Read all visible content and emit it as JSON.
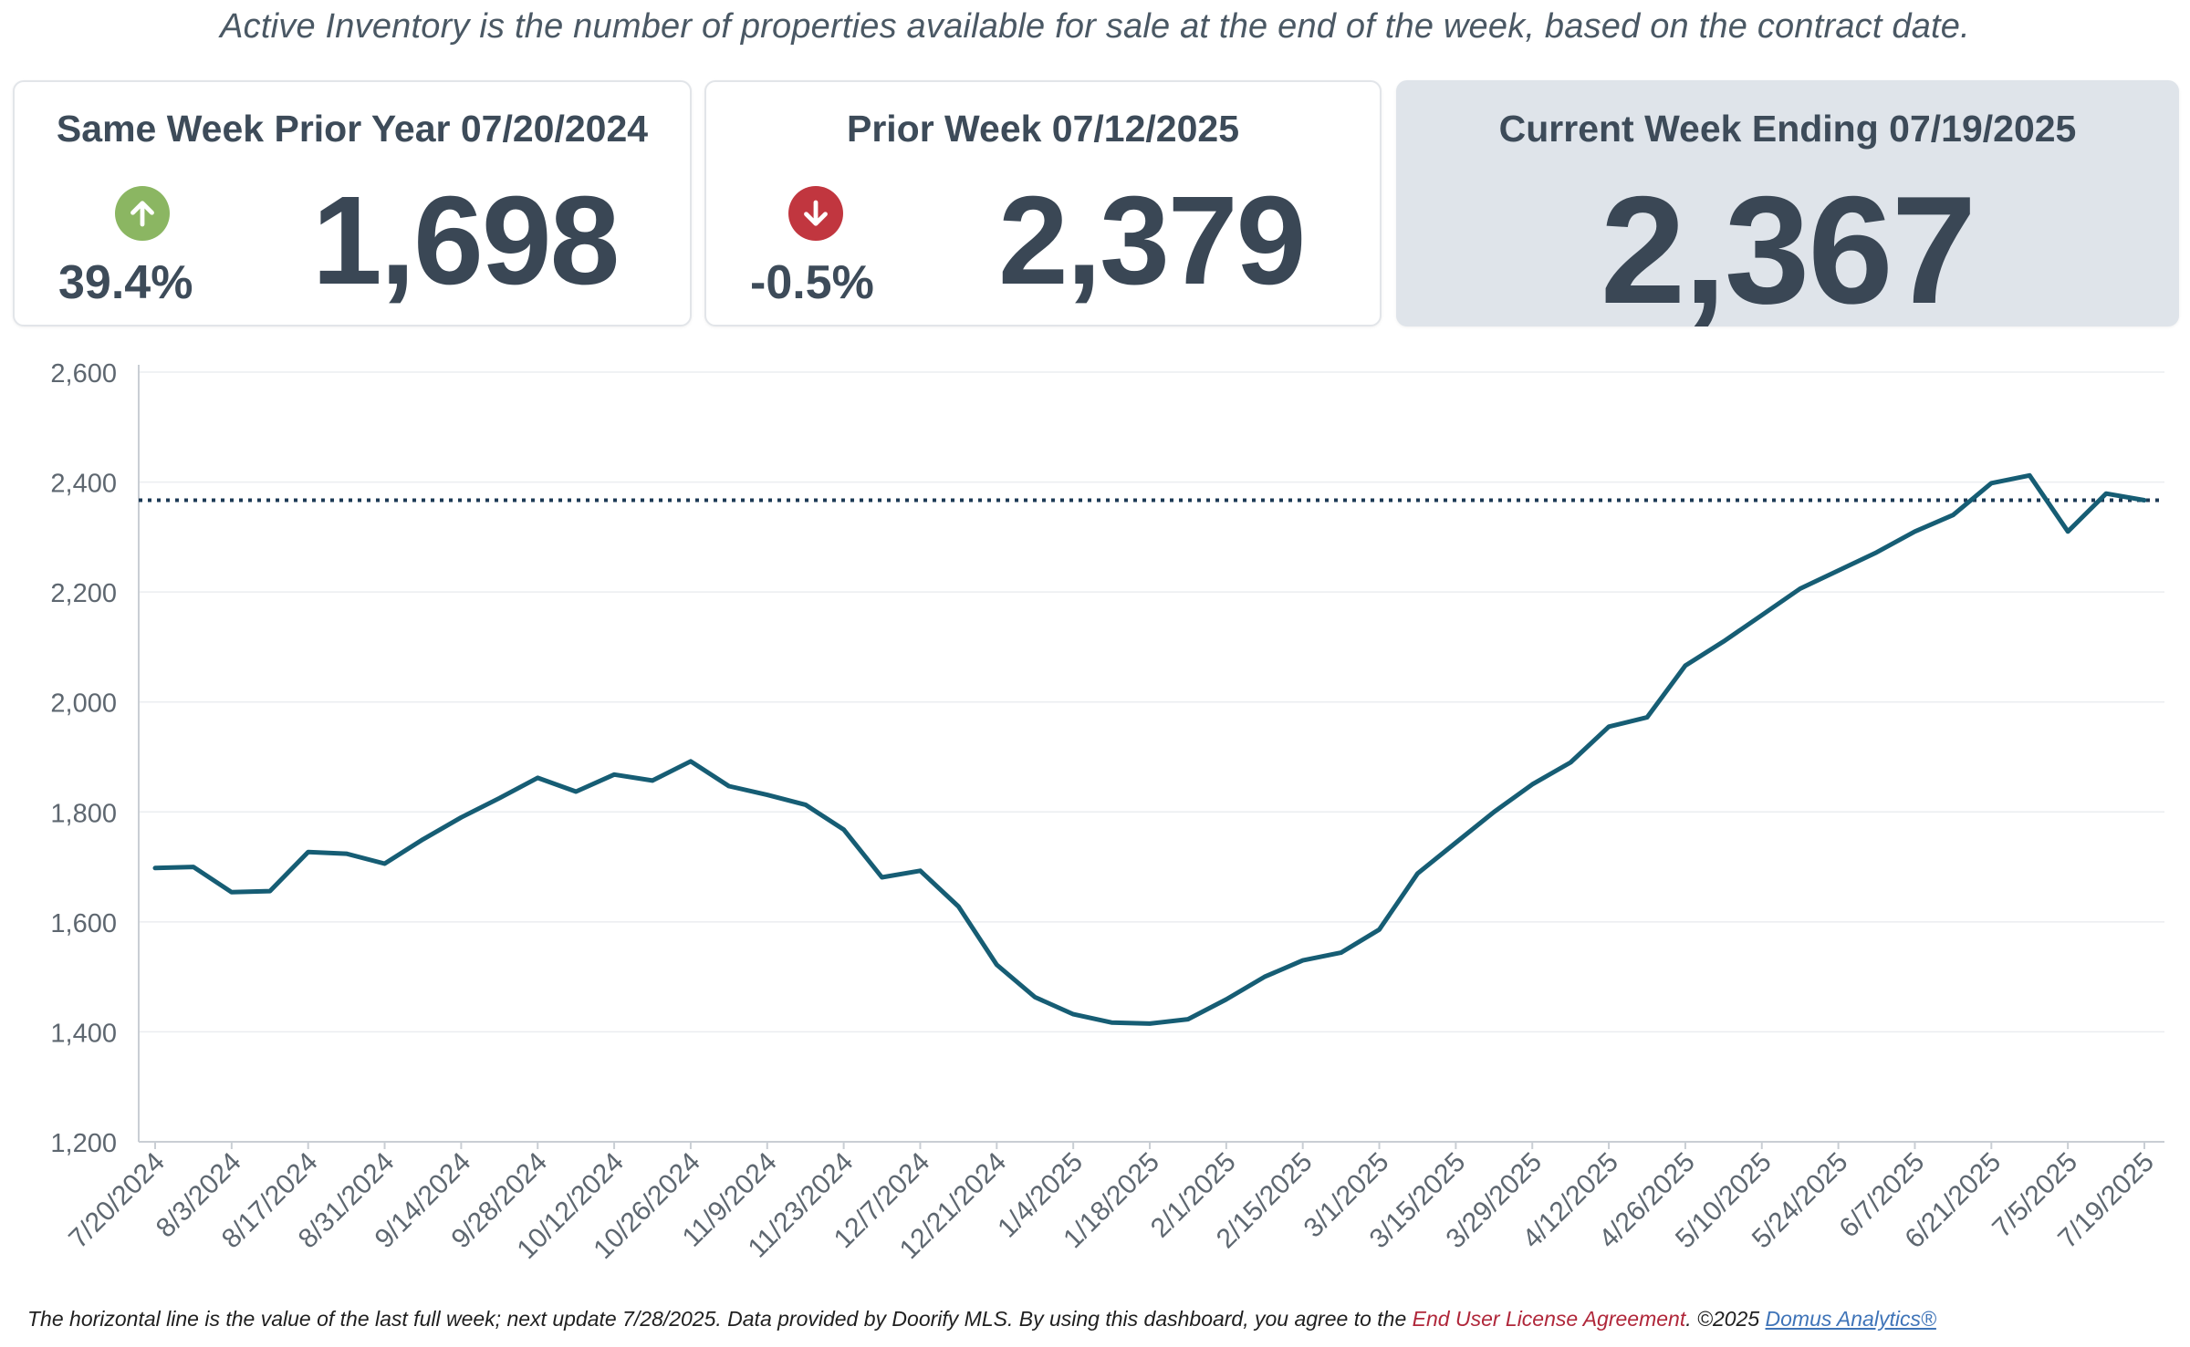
{
  "subtitle": "Active Inventory is the number of properties available for sale at the end of the week, based on the contract date.",
  "cards": {
    "prior_year": {
      "title": "Same Week Prior Year 07/20/2024",
      "value": "1,698",
      "change": "39.4%",
      "direction": "up",
      "badge_color": "#8bb662"
    },
    "prior_week": {
      "title": "Prior Week 07/12/2025",
      "value": "2,379",
      "change": "-0.5%",
      "direction": "down",
      "badge_color": "#c1363f"
    },
    "current": {
      "title": "Current Week Ending 07/19/2025",
      "value": "2,367"
    }
  },
  "chart_data": {
    "type": "line",
    "title": "",
    "xlabel": "",
    "ylabel": "",
    "ylim": [
      1200,
      2600
    ],
    "yticks": [
      "1,200",
      "1,400",
      "1,600",
      "1,800",
      "2,000",
      "2,200",
      "2,400",
      "2,600"
    ],
    "ytick_values": [
      1200,
      1400,
      1600,
      1800,
      2000,
      2200,
      2400,
      2600
    ],
    "x_tick_labels": [
      "7/20/2024",
      "8/3/2024",
      "8/17/2024",
      "8/31/2024",
      "9/14/2024",
      "9/28/2024",
      "10/12/2024",
      "10/26/2024",
      "11/9/2024",
      "11/23/2024",
      "12/7/2024",
      "12/21/2024",
      "1/4/2025",
      "1/18/2025",
      "2/1/2025",
      "2/15/2025",
      "3/1/2025",
      "3/15/2025",
      "3/29/2025",
      "4/12/2025",
      "4/26/2025",
      "5/10/2025",
      "5/24/2025",
      "6/7/2025",
      "6/21/2025",
      "7/5/2025",
      "7/19/2025"
    ],
    "x": [
      "7/20/2024",
      "7/27/2024",
      "8/3/2024",
      "8/10/2024",
      "8/17/2024",
      "8/24/2024",
      "8/31/2024",
      "9/7/2024",
      "9/14/2024",
      "9/21/2024",
      "9/28/2024",
      "10/5/2024",
      "10/12/2024",
      "10/19/2024",
      "10/26/2024",
      "11/2/2024",
      "11/9/2024",
      "11/16/2024",
      "11/23/2024",
      "11/30/2024",
      "12/7/2024",
      "12/14/2024",
      "12/21/2024",
      "12/28/2024",
      "1/4/2025",
      "1/11/2025",
      "1/18/2025",
      "1/25/2025",
      "2/1/2025",
      "2/8/2025",
      "2/15/2025",
      "2/22/2025",
      "3/1/2025",
      "3/8/2025",
      "3/15/2025",
      "3/22/2025",
      "3/29/2025",
      "4/5/2025",
      "4/12/2025",
      "4/19/2025",
      "4/26/2025",
      "5/3/2025",
      "5/10/2025",
      "5/17/2025",
      "5/24/2025",
      "5/31/2025",
      "6/7/2025",
      "6/14/2025",
      "6/21/2025",
      "6/28/2025",
      "7/5/2025",
      "7/12/2025",
      "7/19/2025"
    ],
    "series": [
      {
        "color": "#165d74",
        "values": [
          1698,
          1700,
          1654,
          1656,
          1727,
          1724,
          1706,
          1750,
          1790,
          1825,
          1862,
          1837,
          1868,
          1857,
          1892,
          1847,
          1831,
          1813,
          1768,
          1681,
          1693,
          1628,
          1522,
          1463,
          1432,
          1417,
          1415,
          1423,
          1459,
          1500,
          1530,
          1544,
          1586,
          1688,
          1744,
          1800,
          1850,
          1890,
          1955,
          1972,
          2066,
          2110,
          2158,
          2206,
          2239,
          2272,
          2310,
          2340,
          2398,
          2412,
          2310,
          2379,
          2367
        ]
      }
    ],
    "reference_line": {
      "value": 2367,
      "style": "dotted",
      "color": "#1c3a55"
    },
    "grid": true,
    "legend": "none"
  },
  "footer": {
    "text": "The horizontal line is the value of the last full week; next update 7/28/2025.  Data provided by Doorify MLS. By using this dashboard, you agree to the",
    "eula": "End User License Agreement",
    "copyright": ".  ©2025",
    "brand": "Domus Analytics®"
  }
}
